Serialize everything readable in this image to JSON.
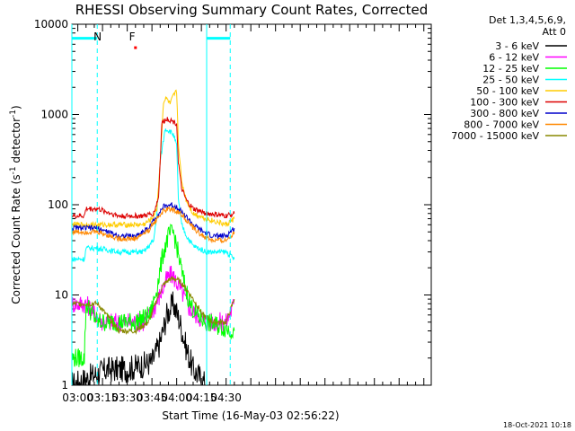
{
  "chart_data": {
    "type": "line",
    "title": "RHESSI Observing Summary Count Rates, Corrected",
    "xlabel": "Start Time (16-May-03 02:56:22)",
    "ylabel": "Corrected Count Rate (s",
    "ylabel_sup1": "-1",
    "ylabel_mid": " detector",
    "ylabel_sup2": "-1",
    "ylabel_end": ")",
    "yscale": "log",
    "ylim": [
      1,
      10000
    ],
    "xlim_minutes": [
      56.4,
      274.5
    ],
    "x_tick_labels": [
      "03:00",
      "03:15",
      "03:30",
      "03:45",
      "04:00",
      "04:15",
      "04:30"
    ],
    "x_tick_minutes": [
      60,
      75,
      90,
      105,
      120,
      135,
      150
    ],
    "y_tick_labels": [
      "1",
      "10",
      "100",
      "1000",
      "10000"
    ],
    "y_tick_values": [
      1,
      10,
      100,
      1000,
      10000
    ],
    "legend_header": [
      "Det 1,3,4,5,6,9,",
      "Att 0"
    ],
    "legend_placement": "right",
    "flag_labels": [
      {
        "text": "N",
        "color": "#00ffff",
        "time_min": 72
      },
      {
        "text": "F",
        "color": "#ff0000",
        "time_min": 93
      }
    ],
    "night_bars": [
      {
        "start_min": 56.4,
        "end_min": 71.8,
        "value": 7000
      },
      {
        "start_min": 138.2,
        "end_min": 152.5,
        "value": 7000
      }
    ],
    "dashed_verticals_min": [
      71.8,
      152.5
    ],
    "solid_verticals_min": [
      56.4,
      138.2
    ],
    "flare_marker": {
      "time_min": 95,
      "value": 5500
    },
    "series": [
      {
        "name": "3 - 6 keV",
        "color": "#000000",
        "times": [
          56.4,
          78,
          90,
          105,
          110,
          114,
          118,
          122,
          126,
          130,
          138
        ],
        "values": [
          1,
          1.5,
          1.5,
          1.8,
          3,
          6,
          8,
          5,
          2.5,
          1.5,
          1
        ]
      },
      {
        "name": "6 - 12 keV",
        "color": "#ff00ff",
        "times": [
          56.4,
          65,
          75,
          90,
          100,
          106,
          110,
          114,
          117,
          120,
          124,
          128,
          132,
          138,
          150,
          155
        ],
        "values": [
          8,
          8,
          5,
          5,
          5,
          7,
          10,
          15,
          17,
          14,
          10,
          7,
          6,
          5,
          5,
          8
        ]
      },
      {
        "name": "12 - 25 keV",
        "color": "#00ff00",
        "times": [
          56.4,
          64,
          65,
          72,
          80,
          95,
          104,
          108,
          112,
          115,
          118,
          120,
          124,
          128,
          132,
          138,
          155
        ],
        "values": [
          2,
          2,
          8,
          5,
          5,
          5,
          6,
          12,
          30,
          45,
          50,
          35,
          15,
          8,
          6,
          5,
          4
        ]
      },
      {
        "name": "25 - 50 keV",
        "color": "#00ffff",
        "times": [
          56.4,
          64,
          65,
          72,
          85,
          100,
          106,
          108,
          110,
          113,
          116,
          118,
          120,
          121,
          123,
          126,
          130,
          138,
          150,
          155
        ],
        "values": [
          25,
          25,
          33,
          33,
          30,
          30,
          40,
          80,
          300,
          700,
          650,
          600,
          450,
          120,
          60,
          45,
          35,
          30,
          30,
          25
        ]
      },
      {
        "name": "50 - 100 keV",
        "color": "#ffcc00",
        "times": [
          56.4,
          72,
          90,
          100,
          105,
          108,
          110,
          112,
          114,
          116,
          118,
          120,
          121,
          123,
          126,
          130,
          138,
          150,
          155
        ],
        "values": [
          60,
          60,
          60,
          60,
          70,
          90,
          300,
          1400,
          1500,
          1300,
          1600,
          1800,
          500,
          180,
          110,
          80,
          70,
          60,
          70
        ]
      },
      {
        "name": "100 - 300 keV",
        "color": "#dd0000",
        "times": [
          56.4,
          64,
          65,
          72,
          85,
          100,
          106,
          109,
          111,
          114,
          117,
          120,
          121,
          123,
          126,
          130,
          138,
          150,
          155
        ],
        "values": [
          75,
          75,
          90,
          90,
          75,
          75,
          80,
          120,
          800,
          900,
          850,
          800,
          300,
          150,
          110,
          90,
          80,
          75,
          80
        ]
      },
      {
        "name": "300 - 800 keV",
        "color": "#0000cc",
        "times": [
          56.4,
          72,
          85,
          95,
          103,
          108,
          112,
          116,
          120,
          124,
          130,
          136,
          142,
          150,
          155
        ],
        "values": [
          55,
          55,
          45,
          45,
          55,
          75,
          95,
          100,
          95,
          80,
          60,
          50,
          45,
          45,
          55
        ]
      },
      {
        "name": "800 - 7000 keV",
        "color": "#ff8800",
        "times": [
          56.4,
          72,
          85,
          95,
          103,
          108,
          112,
          116,
          120,
          124,
          130,
          136,
          142,
          150,
          155
        ],
        "values": [
          50,
          50,
          42,
          42,
          52,
          70,
          85,
          90,
          85,
          75,
          55,
          45,
          40,
          40,
          50
        ]
      },
      {
        "name": "7000 - 15000 keV",
        "color": "#888800",
        "times": [
          56.4,
          64,
          72,
          85,
          95,
          103,
          108,
          112,
          116,
          120,
          124,
          130,
          136,
          142,
          150,
          155
        ],
        "values": [
          8,
          8,
          8,
          4,
          4,
          5,
          9,
          13,
          15,
          15,
          13,
          9,
          6,
          5,
          5,
          9
        ]
      }
    ]
  },
  "footer": {
    "timestamp": "18-Oct-2021 10:18"
  }
}
